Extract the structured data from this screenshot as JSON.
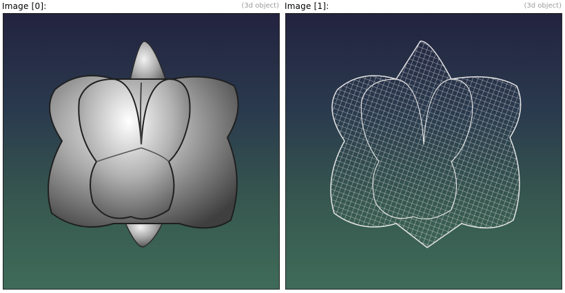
{
  "panels": [
    {
      "title": "Image [0]:",
      "type_label": "(3d object)",
      "render_mode": "solid-shaded"
    },
    {
      "title": "Image [1]:",
      "type_label": "(3d object)",
      "render_mode": "wireframe"
    }
  ],
  "colors": {
    "background_top": "#23233f",
    "background_bottom": "#3f6b5a",
    "surface": "#9a9a9a",
    "wire": "#d8d8d8"
  }
}
